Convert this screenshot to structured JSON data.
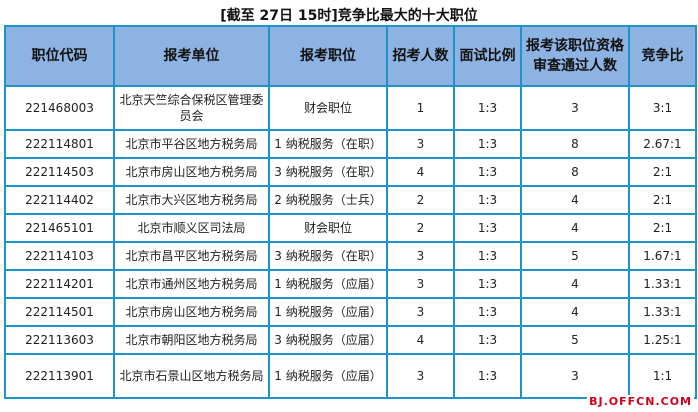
{
  "title": "[截至 27日 15时]竞争比最大的十大职位",
  "headers": [
    "职位代码",
    "报考单位",
    "报考职位",
    "招考人数",
    "面试比例",
    "报考该职位资格审查通过人数",
    "竞争比"
  ],
  "rows": [
    [
      "221468003",
      "北京天竺综合保税区管理委员会",
      "财会职位",
      "1",
      "1:3",
      "3",
      "3:1"
    ],
    [
      "222114801",
      "北京市平谷区地方税务局",
      "1 纳税服务（在职）",
      "3",
      "1:3",
      "8",
      "2.67:1"
    ],
    [
      "222114503",
      "北京市房山区地方税务局",
      "3 纳税服务（在职）",
      "4",
      "1:3",
      "8",
      "2:1"
    ],
    [
      "222114402",
      "北京市大兴区地方税务局",
      "2 纳税服务（士兵）",
      "2",
      "1:3",
      "4",
      "2:1"
    ],
    [
      "221465101",
      "北京市顺义区司法局",
      "财会职位",
      "2",
      "1:3",
      "4",
      "2:1"
    ],
    [
      "222114103",
      "北京市昌平区地方税务局",
      "3 纳税服务（在职）",
      "3",
      "1:3",
      "5",
      "1.67:1"
    ],
    [
      "222114201",
      "北京市通州区地方税务局",
      "1 纳税服务（应届）",
      "3",
      "1:3",
      "4",
      "1.33:1"
    ],
    [
      "222114501",
      "北京市房山区地方税务局",
      "1 纳税服务（应届）",
      "3",
      "1:3",
      "4",
      "1.33:1"
    ],
    [
      "222113603",
      "北京市朝阳区地方税务局",
      "3 纳税服务（应届）",
      "4",
      "1:3",
      "5",
      "1.25:1"
    ],
    [
      "222113901",
      "北京市石景山区地方税务局",
      "1 纳税服务（应届）",
      "3",
      "1:3",
      "3",
      "1:1"
    ]
  ],
  "watermark": "BJ.OFFCN.COM"
}
